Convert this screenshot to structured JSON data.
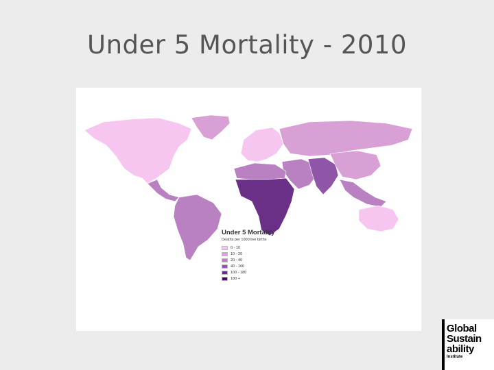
{
  "slide": {
    "title": "Under 5 Mortality - 2010"
  },
  "map": {
    "legend_title": "Under 5 Mortality",
    "legend_subtitle": "Deaths per 1000 live births",
    "classes": [
      {
        "label": "0 - 10",
        "color": "#f7c6f0"
      },
      {
        "label": "10 - 20",
        "color": "#d9a0d6"
      },
      {
        "label": "20 - 40",
        "color": "#b980c2"
      },
      {
        "label": "40 - 100",
        "color": "#8f55a6"
      },
      {
        "label": "100 - 180",
        "color": "#6a2f87"
      },
      {
        "label": "180 +",
        "color": "#45105e"
      }
    ],
    "regions": {
      "north_america": "0 - 10",
      "greenland": "10 - 20",
      "central_america": "20 - 40",
      "south_america": "20 - 40",
      "europe": "0 - 10",
      "russia": "10 - 20",
      "middle_east": "20 - 40",
      "north_africa": "20 - 40",
      "sub_saharan_africa": "100 - 180",
      "south_asia": "40 - 100",
      "china": "10 - 20",
      "southeast_asia": "20 - 40",
      "australia": "0 - 10"
    }
  },
  "logo": {
    "lines": [
      "Global",
      "Sustain",
      "ability"
    ],
    "small": "Institute"
  }
}
